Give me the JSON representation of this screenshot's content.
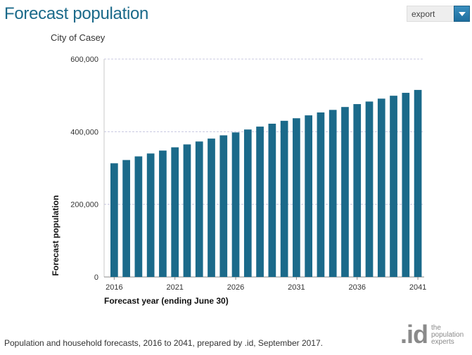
{
  "header": {
    "title": "Forecast population"
  },
  "export": {
    "label": "export",
    "icon": "chevron-down-icon"
  },
  "brand": {
    "mark": ".id",
    "tagline": "the population experts"
  },
  "footer": {
    "note": "Population and household forecasts, 2016 to 2041, prepared by .id, September 2017."
  },
  "colors": {
    "bar": "#1b6a8a",
    "title": "#1b6a8a",
    "grid": "#c8c8e0",
    "brand_gray": "#8a8a8a"
  },
  "chart_data": {
    "type": "bar",
    "title": "City of Casey",
    "xlabel": "Forecast year (ending June 30)",
    "ylabel": "Forecast population",
    "ylim": [
      0,
      600000
    ],
    "yticks": [
      0,
      200000,
      400000,
      600000
    ],
    "ytick_labels": [
      "0",
      "200,000",
      "400,000",
      "600,000"
    ],
    "xtick_labels": [
      "2016",
      "2021",
      "2026",
      "2031",
      "2036",
      "2041"
    ],
    "grid": true,
    "categories": [
      "2016",
      "2017",
      "2018",
      "2019",
      "2020",
      "2021",
      "2022",
      "2023",
      "2024",
      "2025",
      "2026",
      "2027",
      "2028",
      "2029",
      "2030",
      "2031",
      "2032",
      "2033",
      "2034",
      "2035",
      "2036",
      "2037",
      "2038",
      "2039",
      "2040",
      "2041"
    ],
    "values": [
      313000,
      322000,
      332000,
      340000,
      348000,
      357000,
      365000,
      373000,
      381000,
      390000,
      398000,
      406000,
      414000,
      422000,
      430000,
      437000,
      445000,
      453000,
      460000,
      468000,
      476000,
      483000,
      491000,
      499000,
      507000,
      515000
    ]
  }
}
